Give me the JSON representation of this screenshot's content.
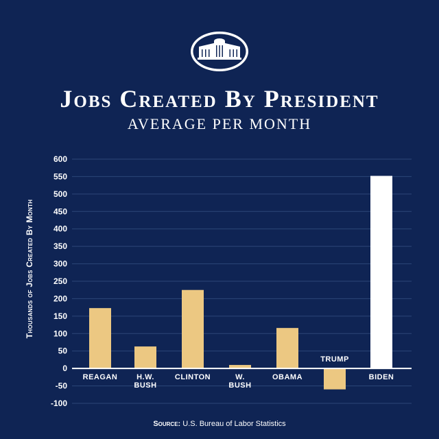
{
  "header": {
    "emblem": "white-house-icon",
    "title": "Jobs Created By President",
    "subtitle": "AVERAGE PER MONTH"
  },
  "source": {
    "label": "Source:",
    "text": "U.S. Bureau of Labor Statistics"
  },
  "colors": {
    "background": "#0f2454",
    "bar": "#ecc882",
    "highlight_bar": "#ffffff",
    "grid": "#2d4678",
    "text": "#ffffff"
  },
  "chart_data": {
    "type": "bar",
    "title": "Jobs Created By President",
    "subtitle": "AVERAGE PER MONTH",
    "ylabel": "Thousands of Jobs Created By Month",
    "xlabel": "",
    "ylim": [
      -100,
      600
    ],
    "yticks": [
      "600",
      "550",
      "500",
      "450",
      "400",
      "350",
      "300",
      "250",
      "200",
      "150",
      "100",
      "50",
      "0",
      "-50",
      "-100"
    ],
    "grid": true,
    "categories": [
      "REAGAN",
      "H.W. BUSH",
      "CLINTON",
      "W. BUSH",
      "OBAMA",
      "TRUMP",
      "BIDEN"
    ],
    "values": [
      173,
      63,
      225,
      10,
      116,
      -60,
      552
    ],
    "highlight": "BIDEN"
  }
}
